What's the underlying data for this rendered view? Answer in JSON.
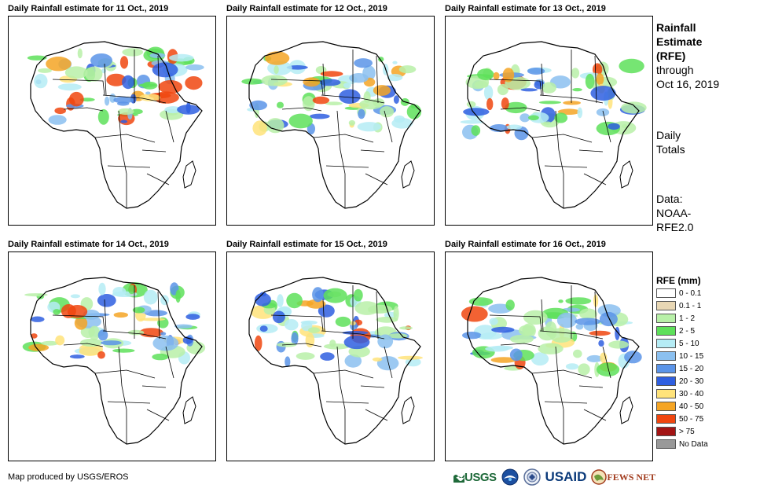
{
  "panels": [
    {
      "title": "Daily Rainfall estimate for 11 Oct., 2019"
    },
    {
      "title": "Daily Rainfall estimate for 12 Oct., 2019"
    },
    {
      "title": "Daily Rainfall estimate for 13 Oct., 2019"
    },
    {
      "title": "Daily Rainfall estimate for 14 Oct., 2019"
    },
    {
      "title": "Daily Rainfall estimate for 15 Oct., 2019"
    },
    {
      "title": "Daily Rainfall estimate for 16 Oct., 2019"
    }
  ],
  "sidebar": {
    "title_line1": "Rainfall",
    "title_line2": "Estimate",
    "title_line3": "(RFE)",
    "through": "through",
    "date": "Oct 16, 2019",
    "totals_line1": "Daily",
    "totals_line2": "Totals",
    "data_line1": "Data:",
    "data_line2": "NOAA-",
    "data_line3": "RFE2.0"
  },
  "legend": {
    "title": "RFE (mm)",
    "items": [
      {
        "label": "0 - 0.1",
        "color": "#ffffff"
      },
      {
        "label": "0.1 - 1",
        "color": "#e8d7b4"
      },
      {
        "label": "1 - 2",
        "color": "#b8f0a8"
      },
      {
        "label": "2 - 5",
        "color": "#5ee05a"
      },
      {
        "label": "5 - 10",
        "color": "#b5ecf5"
      },
      {
        "label": "10 - 15",
        "color": "#8bc0f0"
      },
      {
        "label": "15 - 20",
        "color": "#5b94e8"
      },
      {
        "label": "20 - 30",
        "color": "#2f5fe0"
      },
      {
        "label": "30 - 40",
        "color": "#ffe37a"
      },
      {
        "label": "40 - 50",
        "color": "#f5a524"
      },
      {
        "label": "50 - 75",
        "color": "#f0460f"
      },
      {
        "label": "> 75",
        "color": "#a31414"
      },
      {
        "label": "No Data",
        "color": "#999999"
      }
    ]
  },
  "credit": "Map produced by USGS/EROS",
  "logos": {
    "usgs": "USGS",
    "usaid": "USAID",
    "fews": "FEWS NET"
  }
}
